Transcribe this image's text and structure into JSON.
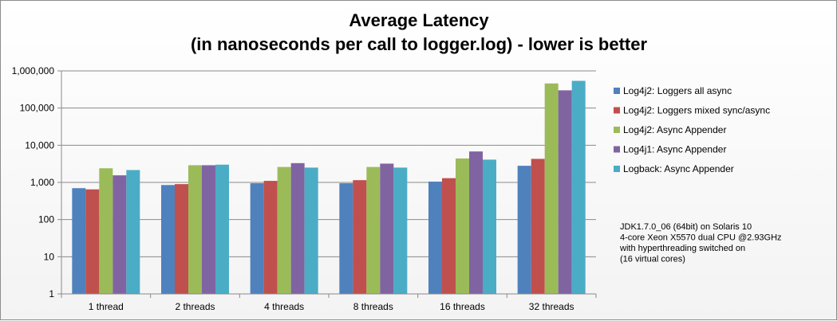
{
  "chart_data": {
    "type": "bar",
    "title_lines": [
      "Average Latency",
      "(in nanoseconds per call to logger.log) - lower is better"
    ],
    "xlabel": "",
    "ylabel": "",
    "y_scale": "log",
    "ylim": [
      1,
      1000000
    ],
    "y_ticks": [
      "1",
      "10",
      "100",
      "1,000",
      "10,000",
      "100,000",
      "1,000,000"
    ],
    "grid": true,
    "legend_position": "right",
    "categories": [
      "1 thread",
      "2 threads",
      "4 threads",
      "8 threads",
      "16 threads",
      "32 threads"
    ],
    "series": [
      {
        "name": "Log4j2: Loggers all async",
        "color": "#4f81bd",
        "values": [
          700,
          850,
          950,
          950,
          1050,
          2800
        ]
      },
      {
        "name": "Log4j2: Loggers mixed sync/async",
        "color": "#c0504d",
        "values": [
          650,
          900,
          1100,
          1150,
          1300,
          4300
        ]
      },
      {
        "name": "Log4j2: Async Appender",
        "color": "#9bbb59",
        "values": [
          2400,
          2900,
          2600,
          2600,
          4400,
          460000
        ]
      },
      {
        "name": "Log4j1: Async Appender",
        "color": "#8064a2",
        "values": [
          1550,
          2900,
          3300,
          3200,
          6800,
          300000
        ]
      },
      {
        "name": "Logback: Async Appender",
        "color": "#4bacc6",
        "values": [
          2150,
          3000,
          2500,
          2500,
          4100,
          540000
        ]
      }
    ],
    "note_lines": [
      "JDK1.7.0_06 (64bit) on Solaris 10",
      "4-core Xeon X5570 dual CPU @2.93GHz",
      "with hyperthreading switched on",
      "(16 virtual cores)"
    ]
  }
}
